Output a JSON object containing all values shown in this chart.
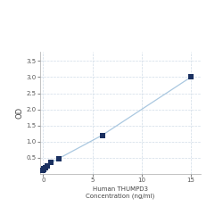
{
  "x_data": [
    0.0,
    0.05,
    0.1,
    0.2,
    0.4,
    0.8,
    1.6,
    6.0,
    15.0
  ],
  "y_data": [
    0.1,
    0.15,
    0.17,
    0.2,
    0.25,
    0.35,
    0.48,
    1.2,
    3.0
  ],
  "xlabel_line1": "Human THUMPD3",
  "xlabel_line2": "Concentration (ng/ml)",
  "ylabel": "OD",
  "xlim": [
    -0.3,
    16.0
  ],
  "ylim": [
    0,
    3.8
  ],
  "yticks": [
    0.5,
    1.0,
    1.5,
    2.0,
    2.5,
    3.0,
    3.5
  ],
  "xticks": [
    0,
    5,
    10,
    15
  ],
  "x_tick_labels": [
    "0",
    "5",
    "10",
    "15"
  ],
  "line_color": "#aac8e0",
  "marker_color": "#1a3060",
  "marker_size": 4,
  "grid_color": "#d0dce8",
  "background_color": "#ffffff",
  "fig_background": "#ffffff",
  "tick_fontsize": 5,
  "label_fontsize": 5
}
